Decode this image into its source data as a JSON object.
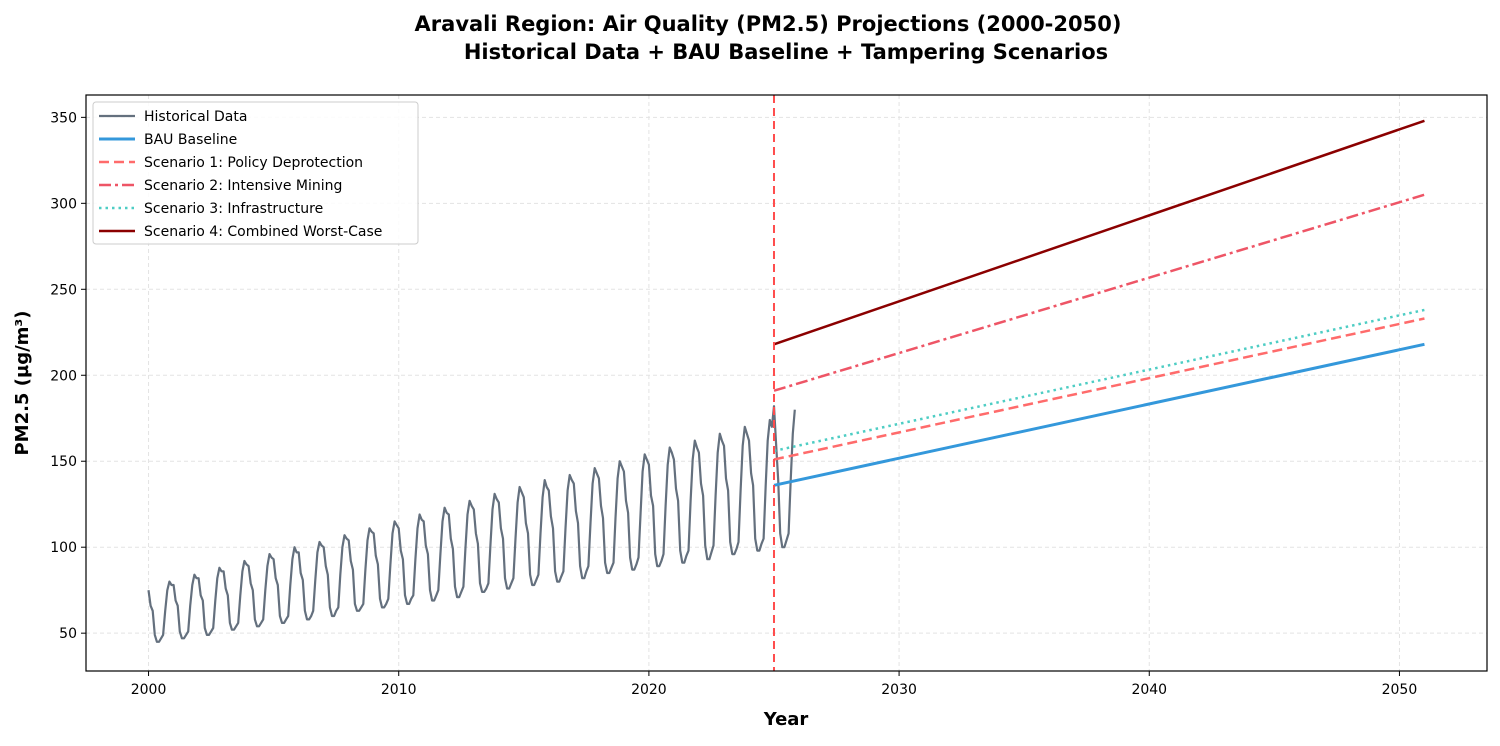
{
  "chart_data": {
    "type": "line",
    "title": "Aravali Region: Air Quality (PM2.5) Projections (2000-2050)",
    "subtitle": "Historical Data + BAU Baseline + Tampering Scenarios",
    "xlabel": "Year",
    "ylabel": "PM2.5 (µg/m³)",
    "xlim": [
      1997.5,
      2053.5
    ],
    "ylim": [
      28,
      363
    ],
    "xticks": [
      2000,
      2010,
      2020,
      2030,
      2040,
      2050
    ],
    "yticks": [
      50,
      100,
      150,
      200,
      250,
      300,
      350
    ],
    "grid": true,
    "legend_position": "top-left",
    "vline": {
      "x": 2025,
      "color": "#ff4d4d",
      "style": "dashed"
    },
    "historical": {
      "name": "Historical Data",
      "color": "#64707e",
      "start_year": 2000,
      "frequency": "monthly",
      "values": [
        75,
        66,
        63,
        49,
        45,
        45,
        47,
        49,
        63,
        75,
        80,
        78,
        78,
        69,
        66,
        51,
        47,
        47,
        49,
        51,
        66,
        78,
        84,
        82,
        82,
        72,
        69,
        53,
        49,
        49,
        51,
        53,
        69,
        82,
        88,
        86,
        86,
        76,
        72,
        56,
        52,
        52,
        54,
        56,
        72,
        86,
        92,
        90,
        89,
        79,
        75,
        58,
        54,
        54,
        56,
        58,
        75,
        89,
        96,
        94,
        93,
        82,
        78,
        60,
        56,
        56,
        58,
        60,
        78,
        93,
        100,
        97,
        97,
        85,
        81,
        63,
        58,
        58,
        60,
        63,
        81,
        97,
        103,
        101,
        100,
        89,
        84,
        65,
        60,
        60,
        63,
        65,
        84,
        100,
        107,
        105,
        104,
        92,
        87,
        67,
        63,
        63,
        65,
        67,
        87,
        104,
        111,
        109,
        108,
        95,
        90,
        70,
        65,
        65,
        67,
        70,
        90,
        108,
        115,
        113,
        111,
        98,
        93,
        72,
        67,
        67,
        70,
        72,
        93,
        111,
        119,
        116,
        115,
        101,
        96,
        75,
        69,
        69,
        72,
        75,
        96,
        115,
        123,
        120,
        119,
        105,
        99,
        77,
        71,
        71,
        74,
        77,
        99,
        119,
        127,
        124,
        122,
        108,
        102,
        79,
        74,
        74,
        76,
        79,
        102,
        122,
        131,
        128,
        126,
        111,
        105,
        82,
        76,
        76,
        79,
        82,
        105,
        126,
        135,
        132,
        129,
        114,
        108,
        84,
        78,
        78,
        81,
        84,
        108,
        129,
        139,
        135,
        133,
        118,
        111,
        86,
        80,
        80,
        83,
        86,
        111,
        133,
        142,
        139,
        137,
        121,
        114,
        89,
        82,
        82,
        86,
        89,
        114,
        137,
        146,
        143,
        140,
        124,
        117,
        91,
        85,
        85,
        88,
        91,
        117,
        140,
        150,
        147,
        144,
        127,
        120,
        94,
        87,
        87,
        90,
        94,
        120,
        144,
        154,
        151,
        148,
        130,
        124,
        96,
        89,
        89,
        92,
        96,
        124,
        148,
        158,
        155,
        151,
        134,
        127,
        98,
        91,
        91,
        95,
        98,
        127,
        151,
        162,
        158,
        155,
        137,
        130,
        101,
        93,
        93,
        97,
        101,
        130,
        155,
        166,
        162,
        159,
        140,
        133,
        103,
        96,
        96,
        99,
        103,
        133,
        159,
        170,
        166,
        162,
        143,
        136,
        105,
        98,
        98,
        102,
        105,
        136,
        162,
        174,
        170,
        182,
        160,
        139,
        108,
        100,
        100,
        104,
        108,
        139,
        166,
        180
      ]
    },
    "series": [
      {
        "name": "BAU Baseline",
        "color": "#3498db",
        "style": "solid",
        "width": 3,
        "x": [
          2025,
          2051
        ],
        "y": [
          136,
          218
        ]
      },
      {
        "name": "Scenario 1: Policy Deprotection",
        "color": "#ff6b6b",
        "style": "dashed",
        "width": 2.5,
        "x": [
          2025,
          2051
        ],
        "y": [
          151,
          233
        ]
      },
      {
        "name": "Scenario 2: Intensive Mining",
        "color": "#ee5566",
        "style": "dashdot",
        "width": 2.5,
        "x": [
          2025,
          2051
        ],
        "y": [
          191,
          305
        ]
      },
      {
        "name": "Scenario 3: Infrastructure",
        "color": "#4ecdc4",
        "style": "dotted",
        "width": 2.5,
        "x": [
          2025,
          2051
        ],
        "y": [
          156,
          238
        ]
      },
      {
        "name": "Scenario 4: Combined Worst-Case",
        "color": "#8b0000",
        "style": "solid",
        "width": 2.5,
        "x": [
          2025,
          2051
        ],
        "y": [
          218,
          348
        ]
      }
    ]
  }
}
